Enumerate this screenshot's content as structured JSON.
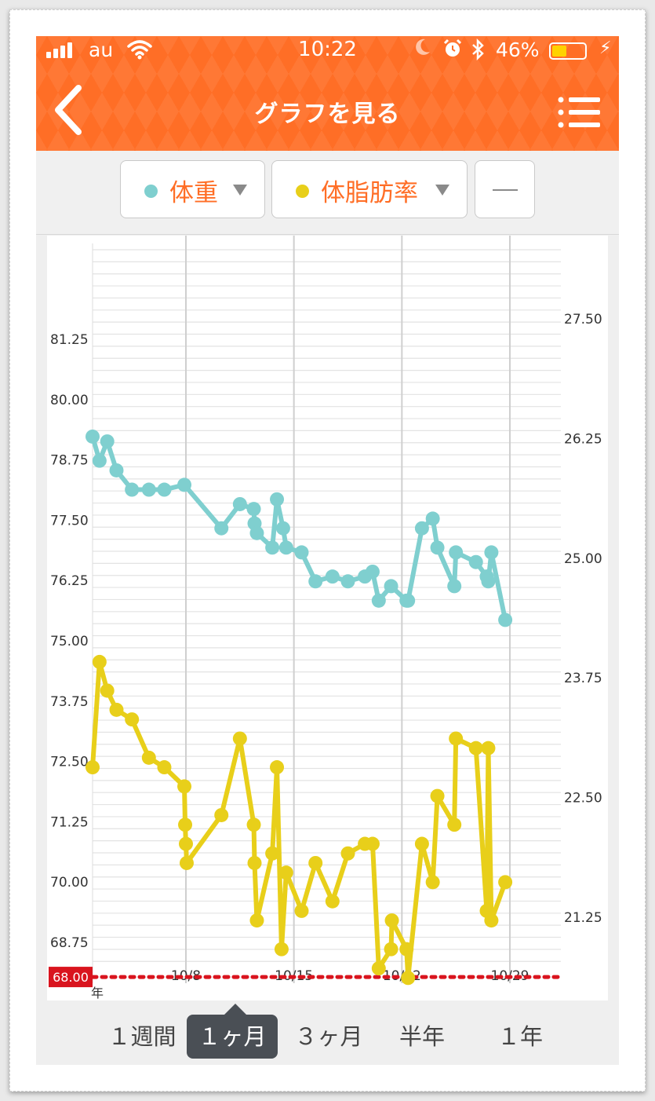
{
  "status_bar": {
    "carrier": "au",
    "time": "10:22",
    "battery_percent": "46%",
    "battery_level": 0.46,
    "icons": [
      "signal-icon",
      "wifi-icon",
      "moon-icon",
      "alarm-icon",
      "bluetooth-icon",
      "battery-icon",
      "charging-bolt-icon"
    ]
  },
  "header": {
    "title": "グラフを見る",
    "back_icon": "chevron-left-icon",
    "menu_icon": "list-menu-icon",
    "background_color": "#ff6e26"
  },
  "selectors": [
    {
      "label": "体重",
      "dot_color": "#7fcfcf",
      "caret": "▼"
    },
    {
      "label": "体脂肪率",
      "dot_color": "#e8cf1a",
      "caret": "▼"
    },
    {
      "label": "—"
    }
  ],
  "chart_data": {
    "type": "line",
    "x_type": "date",
    "x_range": [
      "10/1",
      "10/31"
    ],
    "x_tick_labels": [
      "10/8",
      "10/15",
      "10/22",
      "10/29"
    ],
    "x_tick_days": [
      8,
      15,
      22,
      29
    ],
    "year_label_fragment": "年",
    "y_left": {
      "ticks": [
        "81.25",
        "80.00",
        "78.75",
        "77.50",
        "76.25",
        "75.00",
        "73.75",
        "72.50",
        "71.25",
        "70.00",
        "68.75",
        "68.00"
      ],
      "range": [
        68.0,
        82.5
      ]
    },
    "y_right": {
      "ticks": [
        "27.50",
        "26.25",
        "25.00",
        "23.75",
        "22.50",
        "21.25"
      ],
      "range": [
        20.3,
        28.0
      ]
    },
    "target_line": {
      "value": 68.0,
      "label": "68.00",
      "color": "#d9141e",
      "style": "dotted"
    },
    "grid": true,
    "series": [
      {
        "name": "体重",
        "axis": "left",
        "color": "#7fcfcf",
        "points": [
          [
            1.0,
            79.2
          ],
          [
            2.4,
            78.7
          ],
          [
            2.9,
            79.1
          ],
          [
            3.5,
            78.5
          ],
          [
            4.5,
            78.1
          ],
          [
            5.6,
            78.1
          ],
          [
            6.6,
            78.1
          ],
          [
            7.9,
            78.2
          ],
          [
            10.3,
            77.3
          ],
          [
            11.5,
            77.8
          ],
          [
            12.4,
            77.7
          ],
          [
            12.45,
            77.4
          ],
          [
            12.6,
            77.2
          ],
          [
            13.6,
            76.9
          ],
          [
            13.9,
            77.9
          ],
          [
            14.3,
            77.3
          ],
          [
            14.5,
            76.9
          ],
          [
            15.5,
            76.8
          ],
          [
            16.4,
            76.2
          ],
          [
            17.5,
            76.3
          ],
          [
            18.5,
            76.2
          ],
          [
            19.6,
            76.3
          ],
          [
            20.1,
            76.4
          ],
          [
            20.5,
            75.8
          ],
          [
            21.3,
            76.1
          ],
          [
            22.3,
            75.8
          ],
          [
            22.4,
            75.8
          ],
          [
            23.3,
            77.3
          ],
          [
            24.0,
            77.5
          ],
          [
            24.3,
            76.9
          ],
          [
            25.4,
            76.1
          ],
          [
            25.5,
            76.8
          ],
          [
            26.8,
            76.6
          ],
          [
            27.5,
            76.3
          ],
          [
            27.6,
            76.2
          ],
          [
            27.8,
            76.8
          ],
          [
            28.7,
            75.4
          ]
        ]
      },
      {
        "name": "体脂肪率",
        "axis": "right",
        "color": "#e8cf1a",
        "points": [
          [
            1.0,
            22.8
          ],
          [
            2.4,
            23.9
          ],
          [
            2.9,
            23.6
          ],
          [
            3.5,
            23.4
          ],
          [
            4.5,
            23.3
          ],
          [
            5.6,
            22.9
          ],
          [
            6.6,
            22.8
          ],
          [
            7.9,
            22.6
          ],
          [
            7.95,
            22.2
          ],
          [
            8.0,
            22.0
          ],
          [
            8.05,
            21.8
          ],
          [
            10.3,
            22.3
          ],
          [
            11.5,
            23.1
          ],
          [
            12.4,
            22.2
          ],
          [
            12.45,
            21.8
          ],
          [
            12.6,
            21.2
          ],
          [
            13.6,
            21.9
          ],
          [
            13.9,
            22.8
          ],
          [
            14.2,
            20.9
          ],
          [
            14.5,
            21.7
          ],
          [
            15.5,
            21.3
          ],
          [
            16.4,
            21.8
          ],
          [
            17.5,
            21.4
          ],
          [
            18.5,
            21.9
          ],
          [
            19.6,
            22.0
          ],
          [
            20.1,
            22.0
          ],
          [
            20.5,
            20.7
          ],
          [
            21.3,
            20.9
          ],
          [
            21.35,
            21.2
          ],
          [
            22.3,
            20.9
          ],
          [
            22.4,
            20.6
          ],
          [
            23.3,
            22.0
          ],
          [
            24.0,
            21.6
          ],
          [
            24.3,
            22.5
          ],
          [
            25.4,
            22.2
          ],
          [
            25.5,
            23.1
          ],
          [
            26.8,
            23.0
          ],
          [
            27.5,
            21.3
          ],
          [
            27.6,
            23.0
          ],
          [
            27.8,
            21.2
          ],
          [
            28.7,
            21.6
          ]
        ]
      }
    ]
  },
  "period_tabs": [
    {
      "label": "１週間",
      "active": false
    },
    {
      "label": "１ヶ月",
      "active": true
    },
    {
      "label": "３ヶ月",
      "active": false
    },
    {
      "label": "半年",
      "active": false
    },
    {
      "label": "１年",
      "active": false
    }
  ]
}
